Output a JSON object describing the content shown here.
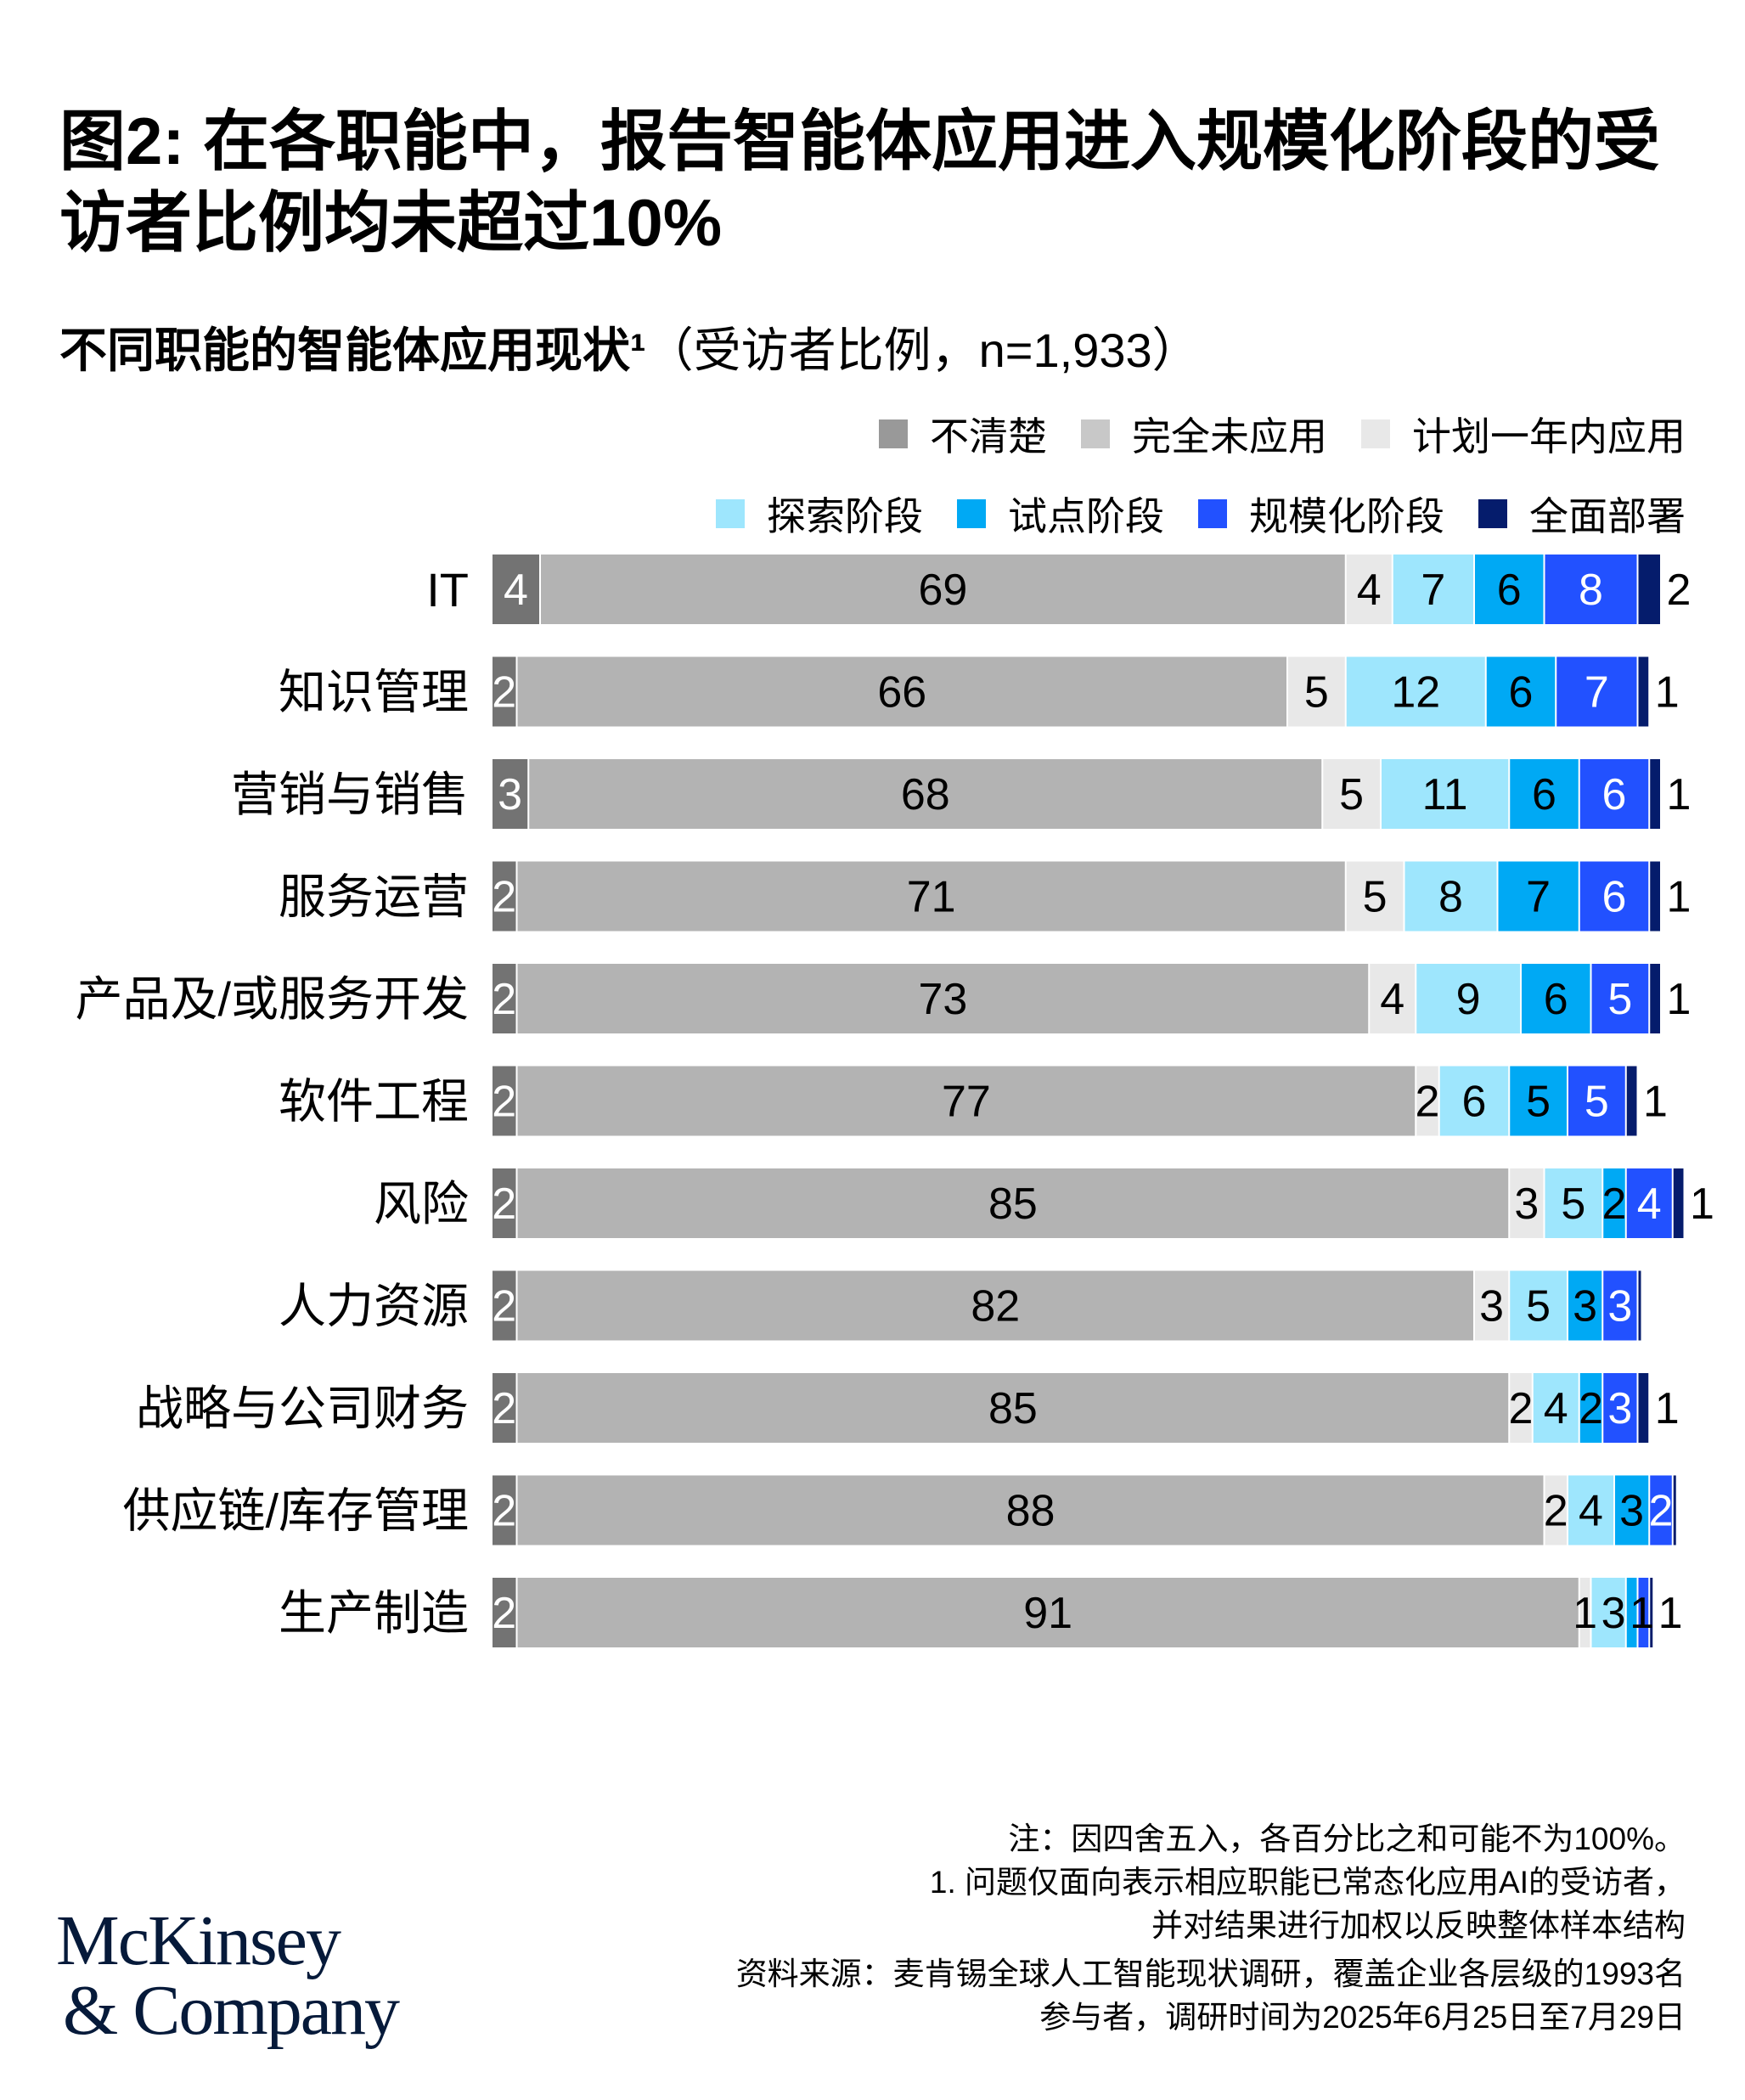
{
  "title": "图2: 在各职能中，报告智能体应用进入规模化阶段的受访者比例均未超过10%",
  "subtitle_main": "不同职能的智能体应用现状¹",
  "subtitle_paren": "（受访者比例，n=1,933）",
  "chart_data": {
    "type": "bar",
    "orientation": "horizontal",
    "stacked": true,
    "unit": "%",
    "legend_position": "top-right",
    "categories": [
      "IT",
      "知识管理",
      "营销与销售",
      "服务运营",
      "产品及/或服务开发",
      "软件工程",
      "风险",
      "人力资源",
      "战略与公司财务",
      "供应链/库存管理",
      "生产制造"
    ],
    "series": [
      {
        "name": "不清楚",
        "color": "#737373",
        "label_color": "#ffffff",
        "values": [
          4,
          2,
          3,
          2,
          2,
          2,
          2,
          2,
          2,
          2,
          2
        ]
      },
      {
        "name": "完全未应用",
        "color": "#b3b3b3",
        "label_color": "#000000",
        "values": [
          69,
          66,
          68,
          71,
          73,
          77,
          85,
          82,
          85,
          88,
          91
        ]
      },
      {
        "name": "计划一年内应用",
        "color": "#e8e8e8",
        "label_color": "#000000",
        "values": [
          4,
          5,
          5,
          5,
          4,
          2,
          3,
          3,
          2,
          2,
          1
        ]
      },
      {
        "name": "探索阶段",
        "color": "#9ee6fd",
        "label_color": "#000000",
        "values": [
          7,
          12,
          11,
          8,
          9,
          6,
          5,
          5,
          4,
          4,
          3
        ]
      },
      {
        "name": "试点阶段",
        "color": "#00a9f4",
        "label_color": "#000000",
        "values": [
          6,
          6,
          6,
          7,
          6,
          5,
          2,
          3,
          2,
          3,
          1
        ]
      },
      {
        "name": "规模化阶段",
        "color": "#2251ff",
        "label_color": "#ffffff",
        "values": [
          8,
          7,
          6,
          6,
          5,
          5,
          4,
          3,
          3,
          2,
          1
        ]
      },
      {
        "name": "全面部署",
        "color": "#051c6c",
        "label_color": "#000000",
        "values": [
          2,
          1,
          1,
          1,
          1,
          1,
          1,
          null,
          1,
          null,
          null
        ]
      }
    ]
  },
  "notes": {
    "note": "注：因四舍五入，各百分比之和可能不为100%。",
    "footnote_1a": "1.   问题仅面向表示相应职能已常态化应用AI的受访者，",
    "footnote_1b": "并对结果进行加权以反映整体样本结构",
    "source_a": "资料来源：麦肯锡全球人工智能现状调研，覆盖企业各层级的1993名",
    "source_b": "参与者，调研时间为2025年6月25日至7月29日"
  },
  "logo": {
    "line1": "McKinsey",
    "line2": "& Company"
  }
}
